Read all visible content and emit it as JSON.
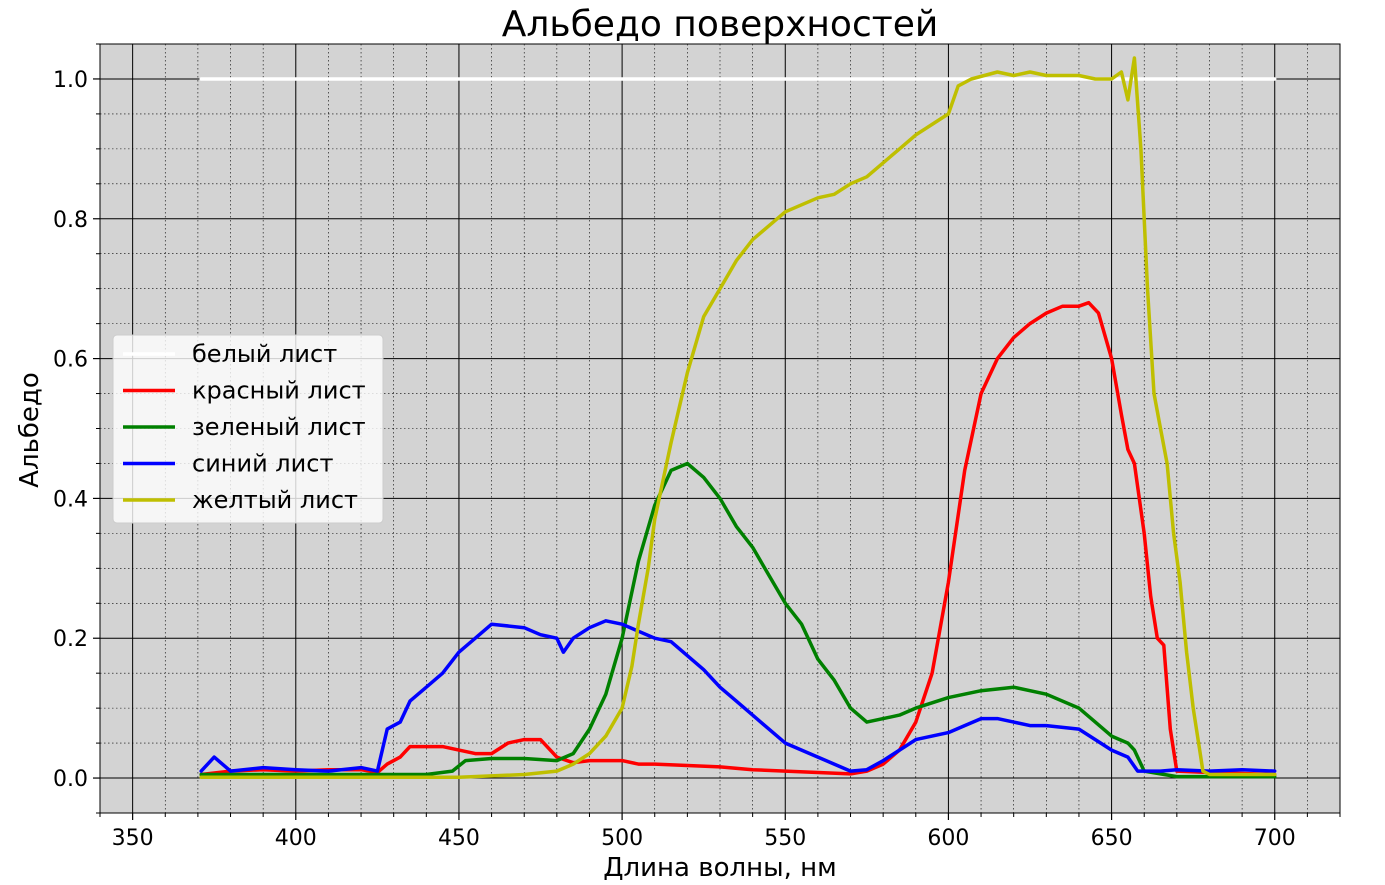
{
  "chart_data": {
    "type": "line",
    "title": "Альбедо поверхностей",
    "xlabel": "Длина волны, нм",
    "ylabel": "Альбедо",
    "xlim": [
      340,
      720
    ],
    "ylim": [
      -0.05,
      1.05
    ],
    "xticks": [
      350,
      400,
      450,
      500,
      550,
      600,
      650,
      700
    ],
    "xtick_labels": [
      "350",
      "400",
      "450",
      "500",
      "550",
      "600",
      "650",
      "700"
    ],
    "yticks": [
      0.0,
      0.2,
      0.4,
      0.6,
      0.8,
      1.0
    ],
    "ytick_labels": [
      "0.0",
      "0.2",
      "0.4",
      "0.6",
      "0.8",
      "1.0"
    ],
    "grid": true,
    "minor_grid": true,
    "legend_position": "center-left",
    "background": "#d3d3d3",
    "series": [
      {
        "name": "белый лист",
        "color": "#ffffff",
        "points": [
          [
            371,
            1.0
          ],
          [
            700,
            1.0
          ]
        ]
      },
      {
        "name": "красный лист",
        "color": "#ff0000",
        "points": [
          [
            371,
            0.005
          ],
          [
            380,
            0.01
          ],
          [
            390,
            0.012
          ],
          [
            400,
            0.01
          ],
          [
            410,
            0.012
          ],
          [
            420,
            0.012
          ],
          [
            425,
            0.008
          ],
          [
            428,
            0.02
          ],
          [
            432,
            0.03
          ],
          [
            435,
            0.045
          ],
          [
            440,
            0.045
          ],
          [
            445,
            0.045
          ],
          [
            450,
            0.04
          ],
          [
            455,
            0.035
          ],
          [
            460,
            0.035
          ],
          [
            465,
            0.05
          ],
          [
            470,
            0.055
          ],
          [
            475,
            0.055
          ],
          [
            480,
            0.03
          ],
          [
            485,
            0.022
          ],
          [
            490,
            0.025
          ],
          [
            500,
            0.025
          ],
          [
            505,
            0.02
          ],
          [
            510,
            0.02
          ],
          [
            520,
            0.018
          ],
          [
            530,
            0.016
          ],
          [
            540,
            0.012
          ],
          [
            550,
            0.01
          ],
          [
            560,
            0.008
          ],
          [
            570,
            0.006
          ],
          [
            575,
            0.01
          ],
          [
            580,
            0.02
          ],
          [
            585,
            0.04
          ],
          [
            590,
            0.08
          ],
          [
            595,
            0.15
          ],
          [
            600,
            0.28
          ],
          [
            605,
            0.44
          ],
          [
            610,
            0.55
          ],
          [
            615,
            0.6
          ],
          [
            620,
            0.63
          ],
          [
            625,
            0.65
          ],
          [
            630,
            0.665
          ],
          [
            635,
            0.675
          ],
          [
            640,
            0.675
          ],
          [
            643,
            0.68
          ],
          [
            646,
            0.665
          ],
          [
            650,
            0.6
          ],
          [
            653,
            0.52
          ],
          [
            655,
            0.47
          ],
          [
            657,
            0.45
          ],
          [
            660,
            0.35
          ],
          [
            662,
            0.26
          ],
          [
            664,
            0.2
          ],
          [
            666,
            0.19
          ],
          [
            668,
            0.07
          ],
          [
            670,
            0.01
          ],
          [
            680,
            0.008
          ],
          [
            700,
            0.005
          ]
        ]
      },
      {
        "name": "зеленый лист",
        "color": "#008000",
        "points": [
          [
            371,
            0.005
          ],
          [
            400,
            0.005
          ],
          [
            440,
            0.005
          ],
          [
            448,
            0.01
          ],
          [
            452,
            0.025
          ],
          [
            460,
            0.028
          ],
          [
            470,
            0.028
          ],
          [
            480,
            0.025
          ],
          [
            485,
            0.035
          ],
          [
            490,
            0.07
          ],
          [
            495,
            0.12
          ],
          [
            500,
            0.2
          ],
          [
            505,
            0.31
          ],
          [
            510,
            0.39
          ],
          [
            515,
            0.44
          ],
          [
            520,
            0.45
          ],
          [
            525,
            0.43
          ],
          [
            530,
            0.4
          ],
          [
            535,
            0.36
          ],
          [
            540,
            0.33
          ],
          [
            545,
            0.29
          ],
          [
            550,
            0.25
          ],
          [
            555,
            0.22
          ],
          [
            560,
            0.17
          ],
          [
            565,
            0.14
          ],
          [
            570,
            0.1
          ],
          [
            575,
            0.08
          ],
          [
            580,
            0.085
          ],
          [
            585,
            0.09
          ],
          [
            590,
            0.1
          ],
          [
            600,
            0.115
          ],
          [
            610,
            0.125
          ],
          [
            620,
            0.13
          ],
          [
            630,
            0.12
          ],
          [
            640,
            0.1
          ],
          [
            645,
            0.08
          ],
          [
            650,
            0.06
          ],
          [
            655,
            0.05
          ],
          [
            657,
            0.04
          ],
          [
            660,
            0.01
          ],
          [
            670,
            0.002
          ],
          [
            700,
            0.002
          ]
        ]
      },
      {
        "name": "синий лист",
        "color": "#0000ff",
        "points": [
          [
            371,
            0.01
          ],
          [
            375,
            0.03
          ],
          [
            380,
            0.01
          ],
          [
            390,
            0.015
          ],
          [
            400,
            0.012
          ],
          [
            410,
            0.01
          ],
          [
            420,
            0.015
          ],
          [
            425,
            0.01
          ],
          [
            428,
            0.07
          ],
          [
            432,
            0.08
          ],
          [
            435,
            0.11
          ],
          [
            440,
            0.13
          ],
          [
            445,
            0.15
          ],
          [
            450,
            0.18
          ],
          [
            455,
            0.2
          ],
          [
            460,
            0.22
          ],
          [
            470,
            0.215
          ],
          [
            475,
            0.205
          ],
          [
            480,
            0.2
          ],
          [
            482,
            0.18
          ],
          [
            485,
            0.2
          ],
          [
            490,
            0.215
          ],
          [
            495,
            0.225
          ],
          [
            500,
            0.22
          ],
          [
            505,
            0.21
          ],
          [
            510,
            0.2
          ],
          [
            515,
            0.195
          ],
          [
            520,
            0.175
          ],
          [
            525,
            0.155
          ],
          [
            530,
            0.13
          ],
          [
            535,
            0.11
          ],
          [
            540,
            0.09
          ],
          [
            545,
            0.07
          ],
          [
            550,
            0.05
          ],
          [
            555,
            0.04
          ],
          [
            560,
            0.03
          ],
          [
            565,
            0.02
          ],
          [
            570,
            0.01
          ],
          [
            575,
            0.012
          ],
          [
            580,
            0.025
          ],
          [
            585,
            0.04
          ],
          [
            590,
            0.055
          ],
          [
            595,
            0.06
          ],
          [
            600,
            0.065
          ],
          [
            605,
            0.075
          ],
          [
            610,
            0.085
          ],
          [
            615,
            0.085
          ],
          [
            620,
            0.08
          ],
          [
            625,
            0.075
          ],
          [
            630,
            0.075
          ],
          [
            640,
            0.07
          ],
          [
            645,
            0.055
          ],
          [
            650,
            0.04
          ],
          [
            655,
            0.03
          ],
          [
            658,
            0.01
          ],
          [
            665,
            0.01
          ],
          [
            670,
            0.012
          ],
          [
            680,
            0.01
          ],
          [
            690,
            0.012
          ],
          [
            700,
            0.01
          ]
        ]
      },
      {
        "name": "желтый лист",
        "color": "#bfbf00",
        "points": [
          [
            371,
            0.001
          ],
          [
            400,
            0.001
          ],
          [
            450,
            0.001
          ],
          [
            470,
            0.005
          ],
          [
            480,
            0.01
          ],
          [
            485,
            0.02
          ],
          [
            490,
            0.035
          ],
          [
            495,
            0.06
          ],
          [
            500,
            0.1
          ],
          [
            503,
            0.16
          ],
          [
            505,
            0.22
          ],
          [
            508,
            0.3
          ],
          [
            510,
            0.37
          ],
          [
            515,
            0.48
          ],
          [
            520,
            0.58
          ],
          [
            525,
            0.66
          ],
          [
            530,
            0.7
          ],
          [
            535,
            0.74
          ],
          [
            540,
            0.77
          ],
          [
            545,
            0.79
          ],
          [
            550,
            0.81
          ],
          [
            555,
            0.82
          ],
          [
            560,
            0.83
          ],
          [
            565,
            0.835
          ],
          [
            570,
            0.85
          ],
          [
            575,
            0.86
          ],
          [
            580,
            0.88
          ],
          [
            585,
            0.9
          ],
          [
            590,
            0.92
          ],
          [
            595,
            0.935
          ],
          [
            600,
            0.95
          ],
          [
            603,
            0.99
          ],
          [
            607,
            1.0
          ],
          [
            615,
            1.01
          ],
          [
            620,
            1.005
          ],
          [
            625,
            1.01
          ],
          [
            630,
            1.005
          ],
          [
            640,
            1.005
          ],
          [
            645,
            1.0
          ],
          [
            650,
            1.0
          ],
          [
            653,
            1.01
          ],
          [
            655,
            0.97
          ],
          [
            657,
            1.03
          ],
          [
            659,
            0.9
          ],
          [
            661,
            0.7
          ],
          [
            663,
            0.55
          ],
          [
            665,
            0.5
          ],
          [
            667,
            0.45
          ],
          [
            669,
            0.35
          ],
          [
            671,
            0.28
          ],
          [
            673,
            0.18
          ],
          [
            675,
            0.1
          ],
          [
            677,
            0.04
          ],
          [
            678,
            0.01
          ],
          [
            680,
            0.005
          ],
          [
            700,
            0.005
          ]
        ]
      }
    ]
  }
}
